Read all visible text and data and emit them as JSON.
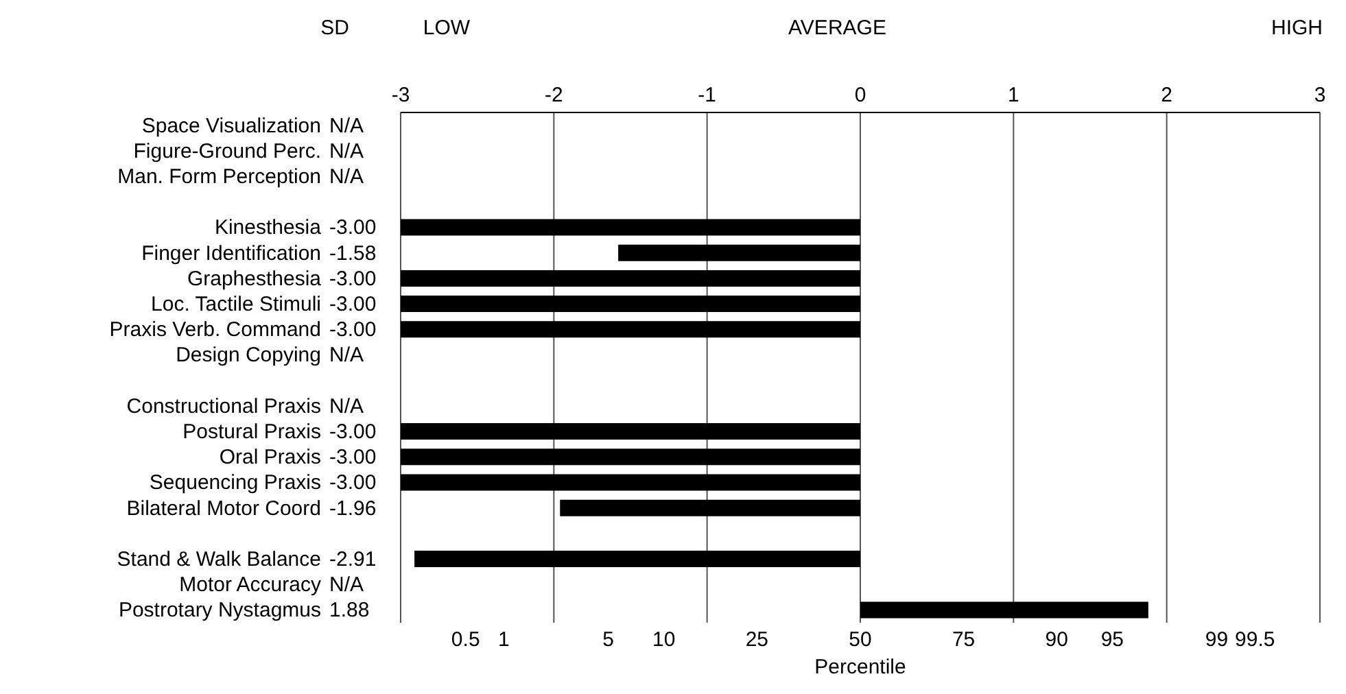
{
  "chart_data": {
    "type": "bar",
    "orientation": "horizontal",
    "categories": [
      "Space Visualization",
      "Figure-Ground Perc.",
      "Man. Form Perception",
      null,
      "Kinesthesia",
      "Finger Identification",
      "Graphesthesia",
      "Loc. Tactile Stimuli",
      "Praxis Verb. Command",
      "Design Copying",
      null,
      "Constructional Praxis",
      "Postural Praxis",
      "Oral Praxis",
      "Sequencing Praxis",
      "Bilateral Motor Coord",
      null,
      "Stand & Walk Balance",
      "Motor Accuracy",
      "Postrotary Nystagmus"
    ],
    "values": [
      null,
      null,
      null,
      null,
      -3.0,
      -1.58,
      -3.0,
      -3.0,
      -3.0,
      null,
      null,
      null,
      -3.0,
      -3.0,
      -3.0,
      -1.96,
      null,
      -2.91,
      null,
      1.88
    ],
    "value_labels": [
      "N/A",
      "N/A",
      "N/A",
      null,
      "-3.00",
      "-1.58",
      "-3.00",
      "-3.00",
      "-3.00",
      "N/A",
      null,
      "N/A",
      "-3.00",
      "-3.00",
      "-3.00",
      "-1.96",
      null,
      "-2.91",
      "N/A",
      "1.88"
    ],
    "color": "#000000",
    "xlim": [
      -3,
      3
    ],
    "xticks": [
      -3,
      -2,
      -1,
      0,
      1,
      2,
      3
    ],
    "grid": "x",
    "annotations": [
      "SD",
      "LOW",
      "AVERAGE",
      "HIGH",
      "Percentile",
      "0.5",
      "1",
      "5",
      "10",
      "25",
      "50",
      "75",
      "90",
      "95",
      "99",
      "99.5"
    ]
  }
}
